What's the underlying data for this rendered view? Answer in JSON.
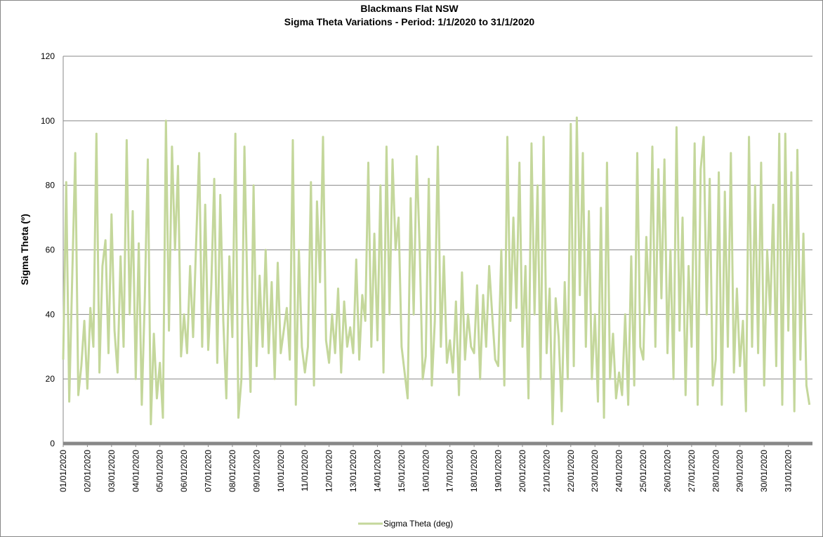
{
  "chart_data": {
    "type": "line",
    "title": "Blackmans Flat NSW",
    "subtitle": "Sigma Theta Variations - Period: 1/1/2020 to 31/1/2020",
    "y_label": "Sigma Theta (º)",
    "ylim": [
      0,
      120
    ],
    "yticks": [
      0,
      20,
      40,
      60,
      80,
      100,
      120
    ],
    "grid": true,
    "legend": "bottom",
    "categories": [
      "01/01/2020",
      null,
      null,
      null,
      null,
      null,
      null,
      null,
      "02/01/2020",
      null,
      null,
      null,
      null,
      null,
      null,
      null,
      "03/01/2020",
      null,
      null,
      null,
      null,
      null,
      null,
      null,
      "04/01/2020",
      null,
      null,
      null,
      null,
      null,
      null,
      null,
      "05/01/2020",
      null,
      null,
      null,
      null,
      null,
      null,
      null,
      "06/01/2020",
      null,
      null,
      null,
      null,
      null,
      null,
      null,
      "07/01/2020",
      null,
      null,
      null,
      null,
      null,
      null,
      null,
      "08/01/2020",
      null,
      null,
      null,
      null,
      null,
      null,
      null,
      "09/01/2020",
      null,
      null,
      null,
      null,
      null,
      null,
      null,
      "10/01/2020",
      null,
      null,
      null,
      null,
      null,
      null,
      null,
      "11/01/2020",
      null,
      null,
      null,
      null,
      null,
      null,
      null,
      "12/01/2020",
      null,
      null,
      null,
      null,
      null,
      null,
      null,
      "13/01/2020",
      null,
      null,
      null,
      null,
      null,
      null,
      null,
      "14/01/2020",
      null,
      null,
      null,
      null,
      null,
      null,
      null,
      "15/01/2020",
      null,
      null,
      null,
      null,
      null,
      null,
      null,
      "16/01/2020",
      null,
      null,
      null,
      null,
      null,
      null,
      null,
      "17/01/2020",
      null,
      null,
      null,
      null,
      null,
      null,
      null,
      "18/01/2020",
      null,
      null,
      null,
      null,
      null,
      null,
      null,
      "19/01/2020",
      null,
      null,
      null,
      null,
      null,
      null,
      null,
      "20/01/2020",
      null,
      null,
      null,
      null,
      null,
      null,
      null,
      "21/01/2020",
      null,
      null,
      null,
      null,
      null,
      null,
      null,
      "22/01/2020",
      null,
      null,
      null,
      null,
      null,
      null,
      null,
      "23/01/2020",
      null,
      null,
      null,
      null,
      null,
      null,
      null,
      "24/01/2020",
      null,
      null,
      null,
      null,
      null,
      null,
      null,
      "25/01/2020",
      null,
      null,
      null,
      null,
      null,
      null,
      null,
      "26/01/2020",
      null,
      null,
      null,
      null,
      null,
      null,
      null,
      "27/01/2020",
      null,
      null,
      null,
      null,
      null,
      null,
      null,
      "28/01/2020",
      null,
      null,
      null,
      null,
      null,
      null,
      null,
      "29/01/2020",
      null,
      null,
      null,
      null,
      null,
      null,
      null,
      "30/01/2020",
      null,
      null,
      null,
      null,
      null,
      null,
      null,
      "31/01/2020",
      null,
      null,
      null,
      null,
      null,
      null,
      null
    ],
    "series": [
      {
        "name": "Sigma Theta (deg)",
        "color": "#c4d79b",
        "values": [
          26,
          81,
          13,
          52,
          90,
          15,
          24,
          38,
          17,
          42,
          30,
          96,
          22,
          55,
          63,
          28,
          71,
          35,
          22,
          58,
          30,
          94,
          40,
          72,
          20,
          62,
          12,
          45,
          88,
          6,
          34,
          14,
          25,
          8,
          100,
          35,
          92,
          60,
          86,
          27,
          40,
          28,
          55,
          33,
          62,
          90,
          30,
          74,
          29,
          48,
          82,
          25,
          77,
          38,
          14,
          58,
          33,
          96,
          8,
          20,
          92,
          45,
          16,
          80,
          24,
          52,
          30,
          60,
          28,
          50,
          20,
          56,
          28,
          35,
          42,
          26,
          94,
          12,
          60,
          30,
          22,
          30,
          81,
          18,
          75,
          50,
          95,
          32,
          25,
          40,
          28,
          48,
          22,
          44,
          30,
          36,
          28,
          57,
          26,
          46,
          38,
          87,
          30,
          65,
          32,
          80,
          22,
          92,
          40,
          88,
          60,
          70,
          30,
          22,
          14,
          76,
          40,
          89,
          60,
          20,
          27,
          82,
          18,
          38,
          92,
          30,
          58,
          25,
          32,
          22,
          44,
          15,
          53,
          26,
          40,
          30,
          28,
          49,
          20,
          46,
          30,
          55,
          40,
          26,
          24,
          60,
          18,
          95,
          38,
          70,
          42,
          87,
          30,
          55,
          14,
          93,
          40,
          80,
          20,
          95,
          28,
          48,
          6,
          45,
          33,
          10,
          50,
          20,
          99,
          24,
          101,
          46,
          90,
          30,
          72,
          20,
          40,
          13,
          73,
          8,
          87,
          20,
          34,
          14,
          22,
          15,
          40,
          12,
          58,
          18,
          90,
          30,
          26,
          64,
          40,
          92,
          30,
          85,
          45,
          88,
          28,
          60,
          20,
          98,
          35,
          70,
          15,
          55,
          30,
          93,
          12,
          85,
          95,
          40,
          82,
          18,
          26,
          84,
          12,
          78,
          30,
          90,
          22,
          48,
          24,
          38,
          10,
          95,
          30,
          80,
          28,
          87,
          18,
          60,
          40,
          74,
          24,
          96,
          12,
          96,
          35,
          84,
          10,
          91,
          26,
          65,
          18,
          12
        ]
      }
    ]
  }
}
